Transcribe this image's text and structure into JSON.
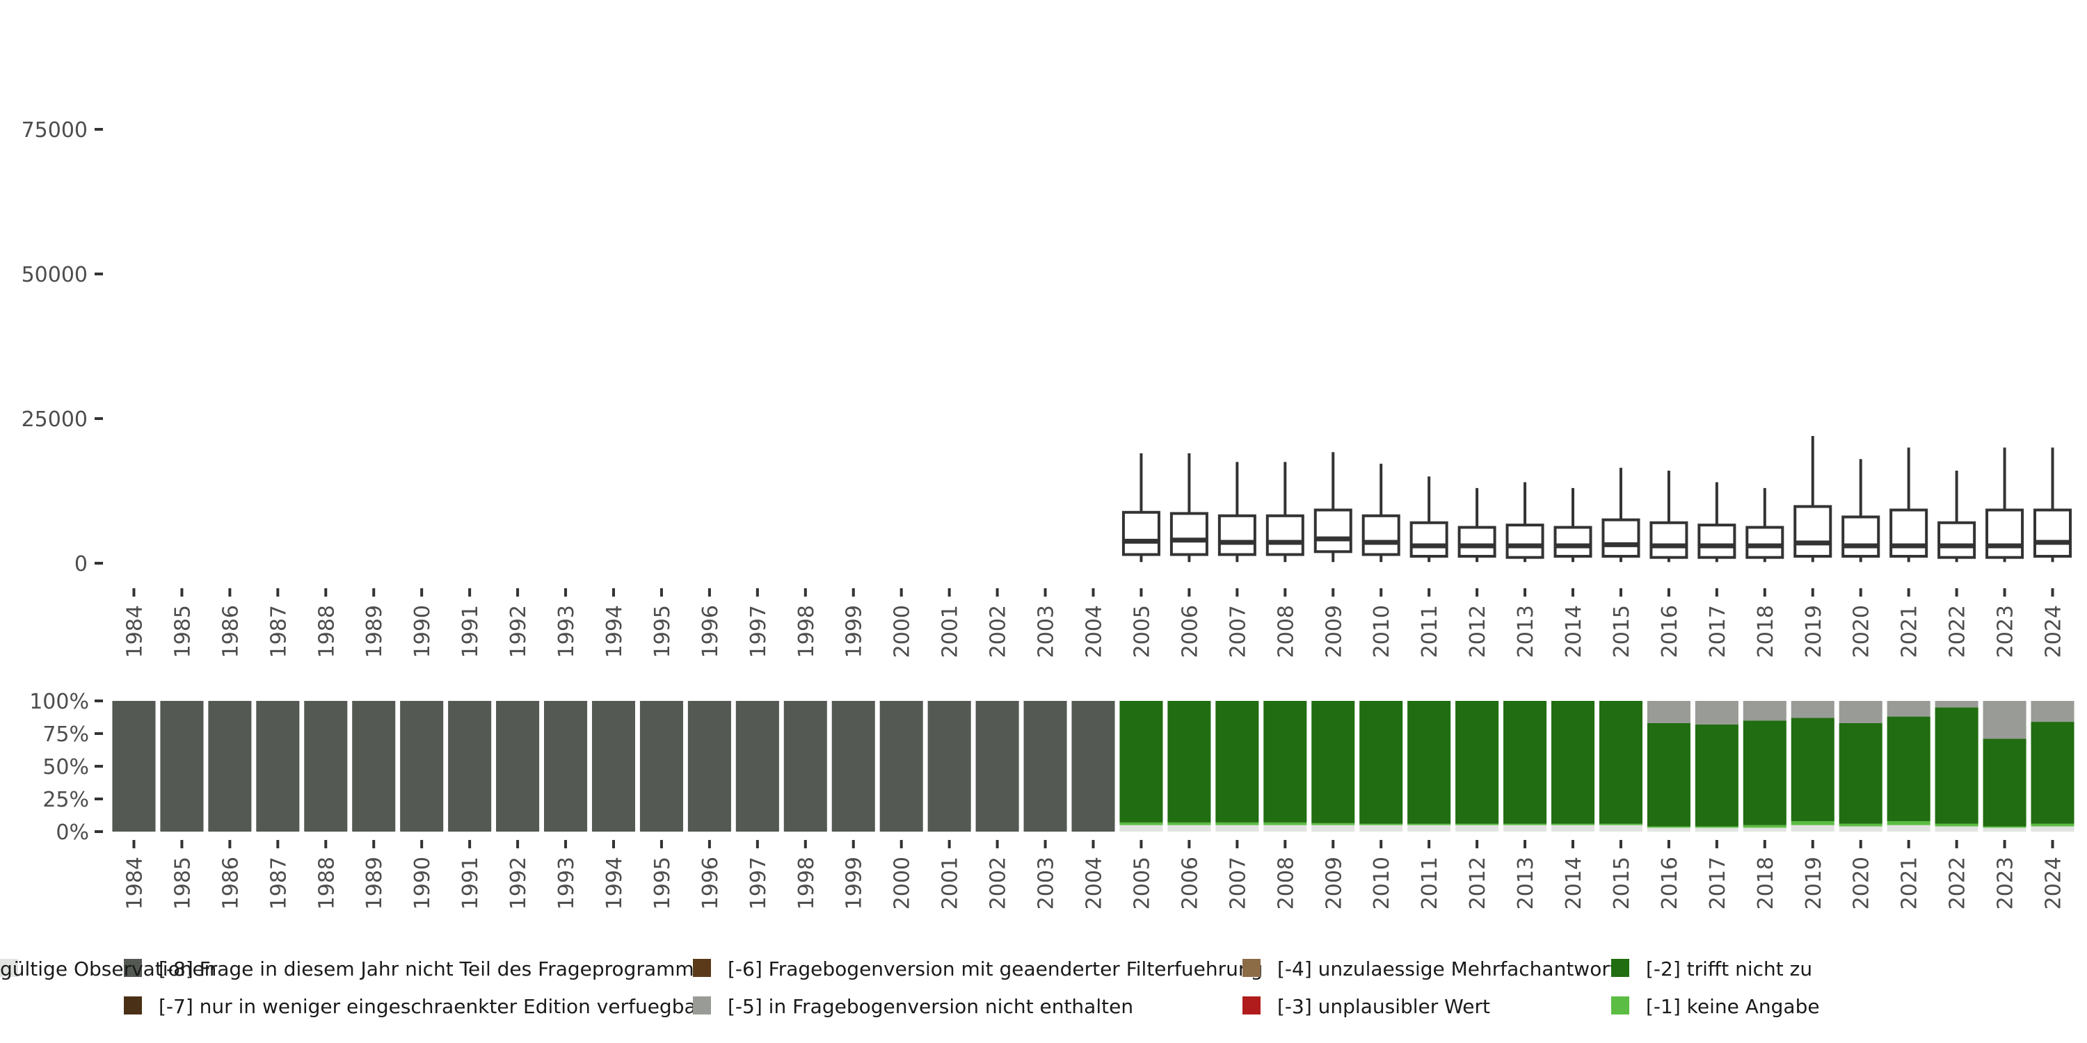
{
  "chart_data": [
    {
      "type": "boxplot",
      "title": "",
      "xlabel": "",
      "ylabel": "",
      "ylim": [
        0,
        90000
      ],
      "yticks": [
        0,
        25000,
        50000,
        75000
      ],
      "categories": [
        "1984",
        "1985",
        "1986",
        "1987",
        "1988",
        "1989",
        "1990",
        "1991",
        "1992",
        "1993",
        "1994",
        "1995",
        "1996",
        "1997",
        "1998",
        "1999",
        "2000",
        "2001",
        "2002",
        "2003",
        "2004",
        "2005",
        "2006",
        "2007",
        "2008",
        "2009",
        "2010",
        "2011",
        "2012",
        "2013",
        "2014",
        "2015",
        "2016",
        "2017",
        "2018",
        "2019",
        "2020",
        "2021",
        "2022",
        "2023",
        "2024"
      ],
      "boxes": [
        {
          "year": "2005",
          "min": 200,
          "q1": 1500,
          "median": 3800,
          "q3": 8800,
          "max": 19000
        },
        {
          "year": "2006",
          "min": 200,
          "q1": 1500,
          "median": 4000,
          "q3": 8600,
          "max": 19000
        },
        {
          "year": "2007",
          "min": 200,
          "q1": 1500,
          "median": 3600,
          "q3": 8200,
          "max": 17500
        },
        {
          "year": "2008",
          "min": 200,
          "q1": 1500,
          "median": 3600,
          "q3": 8200,
          "max": 17500
        },
        {
          "year": "2009",
          "min": 200,
          "q1": 2000,
          "median": 4200,
          "q3": 9200,
          "max": 19200
        },
        {
          "year": "2010",
          "min": 200,
          "q1": 1500,
          "median": 3600,
          "q3": 8200,
          "max": 17200
        },
        {
          "year": "2011",
          "min": 200,
          "q1": 1200,
          "median": 3000,
          "q3": 7000,
          "max": 15000
        },
        {
          "year": "2012",
          "min": 200,
          "q1": 1200,
          "median": 3000,
          "q3": 6200,
          "max": 13000
        },
        {
          "year": "2013",
          "min": 200,
          "q1": 1000,
          "median": 3000,
          "q3": 6600,
          "max": 14000
        },
        {
          "year": "2014",
          "min": 200,
          "q1": 1200,
          "median": 3000,
          "q3": 6200,
          "max": 13000
        },
        {
          "year": "2015",
          "min": 200,
          "q1": 1200,
          "median": 3200,
          "q3": 7500,
          "max": 16500
        },
        {
          "year": "2016",
          "min": 200,
          "q1": 1000,
          "median": 3000,
          "q3": 7000,
          "max": 16000
        },
        {
          "year": "2017",
          "min": 200,
          "q1": 1000,
          "median": 3000,
          "q3": 6600,
          "max": 14000
        },
        {
          "year": "2018",
          "min": 200,
          "q1": 1000,
          "median": 3000,
          "q3": 6200,
          "max": 13000
        },
        {
          "year": "2019",
          "min": 200,
          "q1": 1200,
          "median": 3500,
          "q3": 9800,
          "max": 22000
        },
        {
          "year": "2020",
          "min": 200,
          "q1": 1200,
          "median": 3000,
          "q3": 8000,
          "max": 18000
        },
        {
          "year": "2021",
          "min": 200,
          "q1": 1200,
          "median": 3000,
          "q3": 9200,
          "max": 20000
        },
        {
          "year": "2022",
          "min": 200,
          "q1": 1000,
          "median": 3000,
          "q3": 7000,
          "max": 16000
        },
        {
          "year": "2023",
          "min": 200,
          "q1": 1000,
          "median": 3000,
          "q3": 9200,
          "max": 20000
        },
        {
          "year": "2024",
          "min": 200,
          "q1": 1200,
          "median": 3600,
          "q3": 9200,
          "max": 20000
        }
      ]
    },
    {
      "type": "stacked-bar",
      "title": "",
      "xlabel": "",
      "ylabel": "",
      "ylim": [
        0,
        100
      ],
      "yticks": [
        "0%",
        "25%",
        "50%",
        "75%",
        "100%"
      ],
      "categories": [
        "1984",
        "1985",
        "1986",
        "1987",
        "1988",
        "1989",
        "1990",
        "1991",
        "1992",
        "1993",
        "1994",
        "1995",
        "1996",
        "1997",
        "1998",
        "1999",
        "2000",
        "2001",
        "2002",
        "2003",
        "2004",
        "2005",
        "2006",
        "2007",
        "2008",
        "2009",
        "2010",
        "2011",
        "2012",
        "2013",
        "2014",
        "2015",
        "2016",
        "2017",
        "2018",
        "2019",
        "2020",
        "2021",
        "2022",
        "2023",
        "2024"
      ],
      "series": [
        {
          "name": "gültige Observationen",
          "color": "#e1e4e0",
          "values": [
            0,
            0,
            0,
            0,
            0,
            0,
            0,
            0,
            0,
            0,
            0,
            0,
            0,
            0,
            0,
            0,
            0,
            0,
            0,
            0,
            0,
            5,
            5,
            5,
            5,
            5,
            5,
            5,
            5,
            5,
            5,
            5,
            3,
            3,
            3,
            5,
            4,
            5,
            4,
            3,
            4
          ]
        },
        {
          "name": "[-1] keine Angabe",
          "color": "#5bbd43",
          "values": [
            0,
            0,
            0,
            0,
            0,
            0,
            0,
            0,
            0,
            0,
            0,
            0,
            0,
            0,
            0,
            0,
            0,
            0,
            0,
            0,
            0,
            2,
            2,
            2,
            2,
            1.5,
            1,
            1,
            1,
            1,
            1,
            1,
            1,
            1,
            2,
            3,
            2,
            3,
            2,
            1,
            2
          ]
        },
        {
          "name": "[-2] trifft nicht zu",
          "color": "#216d11",
          "values": [
            0,
            0,
            0,
            0,
            0,
            0,
            0,
            0,
            0,
            0,
            0,
            0,
            0,
            0,
            0,
            0,
            0,
            0,
            0,
            0,
            0,
            93,
            93,
            93,
            93,
            93.5,
            94,
            94,
            94,
            94,
            94,
            94,
            79,
            78,
            80,
            79,
            77,
            80,
            89,
            67,
            78
          ]
        },
        {
          "name": "[-5] in Fragebogenversion nicht enthalten",
          "color": "#999b97",
          "values": [
            0,
            0,
            0,
            0,
            0,
            0,
            0,
            0,
            0,
            0,
            0,
            0,
            0,
            0,
            0,
            0,
            0,
            0,
            0,
            0,
            0,
            0,
            0,
            0,
            0,
            0,
            0,
            0,
            0,
            0,
            0,
            0,
            17,
            18,
            15,
            13,
            17,
            12,
            5,
            29,
            16
          ]
        },
        {
          "name": "[-8] Frage in diesem Jahr nicht Teil des Frageprogramms",
          "color": "#545954",
          "values": [
            100,
            100,
            100,
            100,
            100,
            100,
            100,
            100,
            100,
            100,
            100,
            100,
            100,
            100,
            100,
            100,
            100,
            100,
            100,
            100,
            100,
            0,
            0,
            0,
            0,
            0,
            0,
            0,
            0,
            0,
            0,
            0,
            0,
            0,
            0,
            0,
            0,
            0,
            0,
            0,
            0
          ]
        }
      ]
    }
  ],
  "legend": [
    {
      "label": "[-8] Frage in diesem Jahr nicht Teil des Frageprogramms",
      "color": "#545954"
    },
    {
      "label": "[-7] nur in weniger eingeschraenkter Edition verfuegbar",
      "color": "#4a3016"
    },
    {
      "label": "[-6] Fragebogenversion mit geaenderter Filterfuehrung",
      "color": "#5a3a18"
    },
    {
      "label": "[-5] in Fragebogenversion nicht enthalten",
      "color": "#999b97"
    },
    {
      "label": "[-4] unzulaessige Mehrfachantwort",
      "color": "#8c6b47"
    },
    {
      "label": "[-3] unplausibler Wert",
      "color": "#b01c1c"
    },
    {
      "label": "[-2] trifft nicht zu",
      "color": "#216d11"
    },
    {
      "label": "[-1] keine Angabe",
      "color": "#5bbd43"
    },
    {
      "label": "gültige Observationen",
      "color": "#e1e4e0"
    }
  ]
}
